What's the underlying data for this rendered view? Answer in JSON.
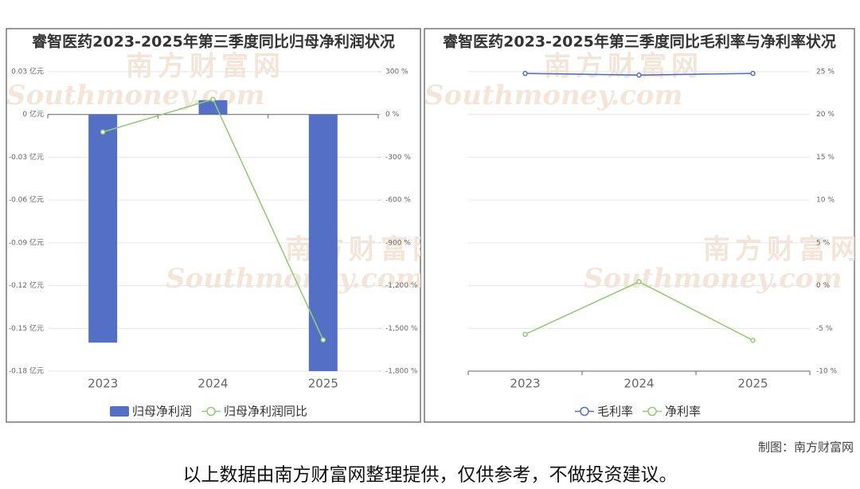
{
  "chart_data": [
    {
      "type": "bar",
      "title": "睿智医药2023-2025年第三季度同比归母净利润状况",
      "categories": [
        "2023",
        "2024",
        "2025"
      ],
      "series": [
        {
          "name": "归母净利润",
          "type": "bar",
          "color": "#5470c6",
          "values": [
            -0.16,
            0.01,
            -0.18
          ]
        },
        {
          "name": "归母净利润同比",
          "type": "line",
          "color": "#91cc75",
          "axis": "y2",
          "values": [
            -123,
            106,
            -1581
          ]
        }
      ],
      "ylim": [
        -0.18,
        0.03
      ],
      "yticks": [
        {
          "value": 0.03,
          "label": "0.03 亿元"
        },
        {
          "value": 0,
          "label": "0 亿元"
        },
        {
          "value": -0.03,
          "label": "-0.03 亿元"
        },
        {
          "value": -0.06,
          "label": "-0.06 亿元"
        },
        {
          "value": -0.09,
          "label": "-0.09 亿元"
        },
        {
          "value": -0.12,
          "label": "-0.12 亿元"
        },
        {
          "value": -0.15,
          "label": "-0.15 亿元"
        },
        {
          "value": -0.18,
          "label": "-0.18 亿元"
        }
      ],
      "y2lim": [
        -1800,
        300
      ],
      "y2ticks": [
        {
          "value": 300,
          "label": "300 %"
        },
        {
          "value": 0,
          "label": "0 %"
        },
        {
          "value": -300,
          "label": "-300 %"
        },
        {
          "value": -600,
          "label": "-600 %"
        },
        {
          "value": -900,
          "label": "-900 %"
        },
        {
          "value": -1200,
          "label": "-1,200 %"
        },
        {
          "value": -1500,
          "label": "-1,500 %"
        },
        {
          "value": -1800,
          "label": "-1,800 %"
        }
      ],
      "grid": true
    },
    {
      "type": "line",
      "title": "睿智医药2023-2025年第三季度同比毛利率与净利率状况",
      "categories": [
        "2023",
        "2024",
        "2025"
      ],
      "series": [
        {
          "name": "毛利率",
          "type": "line",
          "color": "#5470c6",
          "values": [
            24.8,
            24.6,
            24.8
          ]
        },
        {
          "name": "净利率",
          "type": "line",
          "color": "#91cc75",
          "values": [
            -5.7,
            0.45,
            -6.4
          ]
        }
      ],
      "ylim": [
        -10,
        25
      ],
      "yticks": [
        {
          "value": 25,
          "label": "25 %"
        },
        {
          "value": 20,
          "label": "20 %"
        },
        {
          "value": 15,
          "label": "15 %"
        },
        {
          "value": 10,
          "label": "10 %"
        },
        {
          "value": 5,
          "label": "5 %"
        },
        {
          "value": 0,
          "label": "0 %"
        },
        {
          "value": -5,
          "label": "-5 %"
        },
        {
          "value": -10,
          "label": "-10 %"
        }
      ],
      "grid": true
    }
  ],
  "watermark": {
    "cn": "南方财富网",
    "en": "Southmoney.com"
  },
  "credit": "制图：南方财富网",
  "disclaimer": "以上数据由南方财富网整理提供，仅供参考，不做投资建议。"
}
